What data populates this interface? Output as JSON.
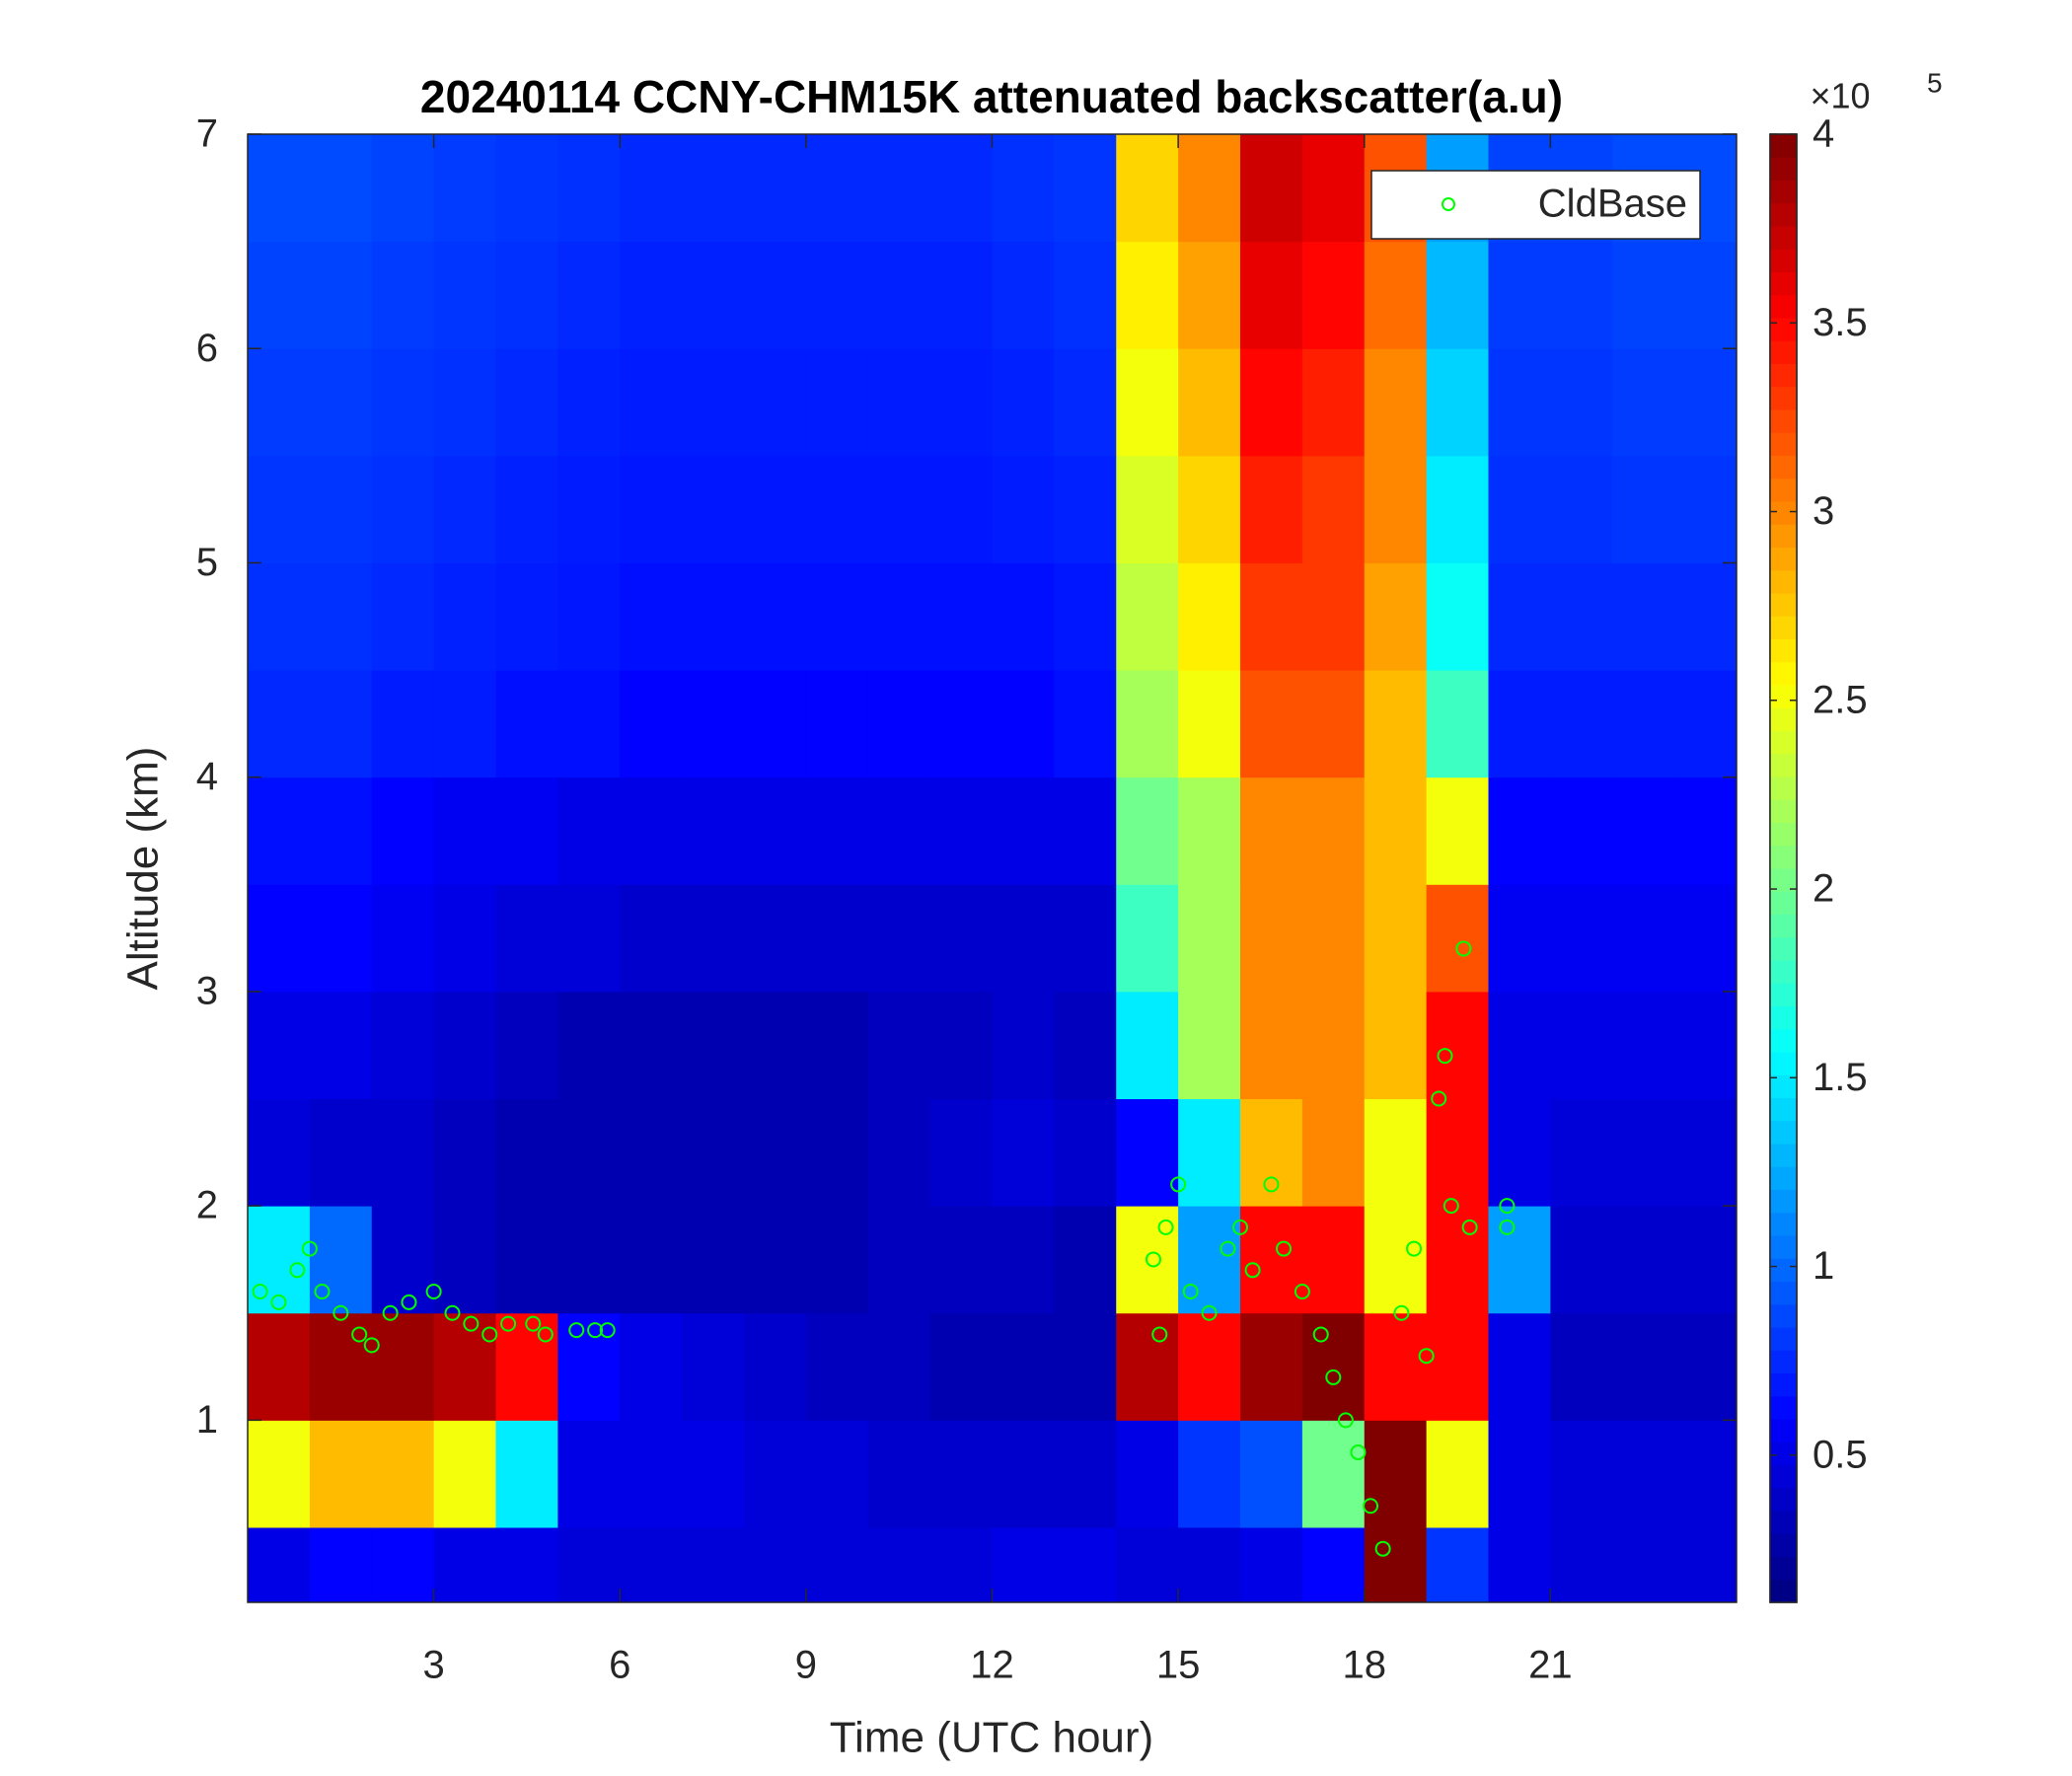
{
  "chart_data": {
    "type": "heatmap",
    "title": "20240114 CCNY-CHM15K attenuated backscatter(a.u)",
    "x_label": "Time (UTC hour)",
    "y_label": "Altitude (km)",
    "xlim": [
      0,
      24
    ],
    "ylim": [
      0.15,
      7
    ],
    "xticks": [
      3,
      6,
      9,
      12,
      15,
      18,
      21
    ],
    "yticks": [
      1,
      2,
      3,
      4,
      5,
      6,
      7
    ],
    "x_edges": [
      0,
      1,
      2,
      3,
      4,
      5,
      6,
      7,
      8,
      9,
      10,
      11,
      12,
      13,
      14,
      15,
      16,
      17,
      18,
      19,
      20,
      21,
      22,
      23,
      24
    ],
    "y_edges": [
      0.15,
      0.5,
      1,
      1.5,
      2,
      2.5,
      3,
      3.5,
      4,
      4.5,
      5,
      5.5,
      6,
      6.5,
      7
    ],
    "z": [
      [
        0.5,
        0.6,
        0.6,
        0.5,
        0.5,
        0.45,
        0.45,
        0.45,
        0.45,
        0.45,
        0.45,
        0.45,
        0.5,
        0.5,
        0.45,
        0.45,
        0.5,
        0.6,
        4,
        0.8,
        0.5,
        0.45,
        0.45,
        0.45
      ],
      [
        2.5,
        2.8,
        2.8,
        2.5,
        1.5,
        0.5,
        0.5,
        0.5,
        0.45,
        0.45,
        0.4,
        0.4,
        0.4,
        0.4,
        0.5,
        0.8,
        0.9,
        2,
        4,
        2.5,
        0.5,
        0.45,
        0.45,
        0.45
      ],
      [
        3.8,
        3.9,
        3.9,
        3.8,
        3.5,
        0.6,
        0.5,
        0.45,
        0.4,
        0.35,
        0.35,
        0.3,
        0.3,
        0.3,
        3.8,
        3.5,
        3.9,
        4,
        3.5,
        3.5,
        0.5,
        0.35,
        0.35,
        0.35
      ],
      [
        1.5,
        1,
        0.4,
        0.35,
        0.3,
        0.3,
        0.3,
        0.3,
        0.3,
        0.3,
        0.35,
        0.35,
        0.35,
        0.3,
        2.5,
        1.2,
        3.5,
        3.5,
        2.5,
        3.5,
        1.2,
        0.4,
        0.4,
        0.4
      ],
      [
        0.45,
        0.4,
        0.4,
        0.35,
        0.3,
        0.3,
        0.3,
        0.3,
        0.3,
        0.3,
        0.35,
        0.4,
        0.45,
        0.4,
        0.6,
        1.5,
        2.8,
        3,
        2.5,
        3.5,
        0.5,
        0.45,
        0.45,
        0.45
      ],
      [
        0.5,
        0.5,
        0.45,
        0.4,
        0.35,
        0.3,
        0.3,
        0.3,
        0.3,
        0.3,
        0.35,
        0.35,
        0.4,
        0.35,
        1.5,
        2.2,
        3,
        3,
        2.8,
        3.5,
        0.5,
        0.5,
        0.5,
        0.5
      ],
      [
        0.6,
        0.6,
        0.55,
        0.5,
        0.45,
        0.45,
        0.4,
        0.4,
        0.4,
        0.4,
        0.4,
        0.4,
        0.4,
        0.4,
        1.8,
        2.2,
        3,
        3,
        2.8,
        3.2,
        0.55,
        0.55,
        0.55,
        0.55
      ],
      [
        0.65,
        0.65,
        0.6,
        0.55,
        0.55,
        0.5,
        0.5,
        0.5,
        0.5,
        0.5,
        0.5,
        0.5,
        0.5,
        0.5,
        2,
        2.2,
        3,
        3,
        2.8,
        2.5,
        0.6,
        0.6,
        0.6,
        0.6
      ],
      [
        0.75,
        0.75,
        0.7,
        0.7,
        0.65,
        0.65,
        0.6,
        0.6,
        0.6,
        0.6,
        0.6,
        0.6,
        0.6,
        0.65,
        2.2,
        2.5,
        3.2,
        3.2,
        2.8,
        1.8,
        0.7,
        0.7,
        0.7,
        0.7
      ],
      [
        0.78,
        0.78,
        0.75,
        0.72,
        0.7,
        0.68,
        0.65,
        0.65,
        0.65,
        0.65,
        0.65,
        0.65,
        0.65,
        0.68,
        2.3,
        2.6,
        3.3,
        3.3,
        2.9,
        1.6,
        0.75,
        0.75,
        0.75,
        0.75
      ],
      [
        0.8,
        0.8,
        0.78,
        0.75,
        0.72,
        0.7,
        0.68,
        0.68,
        0.68,
        0.68,
        0.68,
        0.68,
        0.7,
        0.72,
        2.4,
        2.7,
        3.4,
        3.3,
        3,
        1.5,
        0.78,
        0.78,
        0.8,
        0.8
      ],
      [
        0.82,
        0.82,
        0.8,
        0.78,
        0.75,
        0.72,
        0.7,
        0.7,
        0.7,
        0.7,
        0.7,
        0.7,
        0.72,
        0.75,
        2.5,
        2.8,
        3.5,
        3.4,
        3,
        1.4,
        0.8,
        0.8,
        0.82,
        0.82
      ],
      [
        0.85,
        0.85,
        0.82,
        0.8,
        0.78,
        0.75,
        0.72,
        0.72,
        0.72,
        0.72,
        0.72,
        0.72,
        0.75,
        0.78,
        2.6,
        2.9,
        3.6,
        3.5,
        3.1,
        1.3,
        0.82,
        0.82,
        0.85,
        0.85
      ],
      [
        0.88,
        0.88,
        0.85,
        0.82,
        0.8,
        0.78,
        0.75,
        0.75,
        0.75,
        0.75,
        0.75,
        0.75,
        0.78,
        0.8,
        2.7,
        3,
        3.7,
        3.6,
        3.2,
        1.2,
        0.85,
        0.85,
        0.88,
        0.88
      ]
    ],
    "colorbar": {
      "clim": [
        0.11,
        4
      ],
      "ticks": [
        0.5,
        1,
        1.5,
        2,
        2.5,
        3,
        3.5,
        4
      ],
      "multiplier": "×10",
      "exponent": "5",
      "colormap": "jet"
    },
    "series": [
      {
        "name": "CldBase",
        "type": "scatter",
        "color": "#00ff00",
        "x": [
          0.2,
          0.5,
          0.8,
          1.0,
          1.2,
          1.5,
          1.8,
          2.0,
          2.3,
          2.6,
          3.0,
          3.3,
          3.6,
          3.9,
          4.2,
          4.6,
          4.8,
          5.3,
          5.6,
          5.8,
          14.6,
          14.8,
          15.0,
          14.7,
          15.2,
          15.5,
          15.8,
          16.0,
          16.2,
          16.5,
          16.7,
          17.0,
          17.3,
          17.5,
          17.7,
          17.9,
          18.1,
          18.3,
          18.6,
          18.8,
          19.0,
          19.2,
          19.3,
          19.4,
          19.6,
          19.7,
          20.3,
          20.3
        ],
        "y": [
          1.6,
          1.55,
          1.7,
          1.8,
          1.6,
          1.5,
          1.4,
          1.35,
          1.5,
          1.55,
          1.6,
          1.5,
          1.45,
          1.4,
          1.45,
          1.45,
          1.4,
          1.42,
          1.42,
          1.42,
          1.75,
          1.9,
          2.1,
          1.4,
          1.6,
          1.5,
          1.8,
          1.9,
          1.7,
          2.1,
          1.8,
          1.6,
          1.4,
          1.2,
          1.0,
          0.85,
          0.6,
          0.4,
          1.5,
          1.8,
          1.3,
          2.5,
          2.7,
          2.0,
          3.2,
          1.9,
          2.0,
          1.9
        ]
      }
    ],
    "legend_position": "upper right"
  }
}
